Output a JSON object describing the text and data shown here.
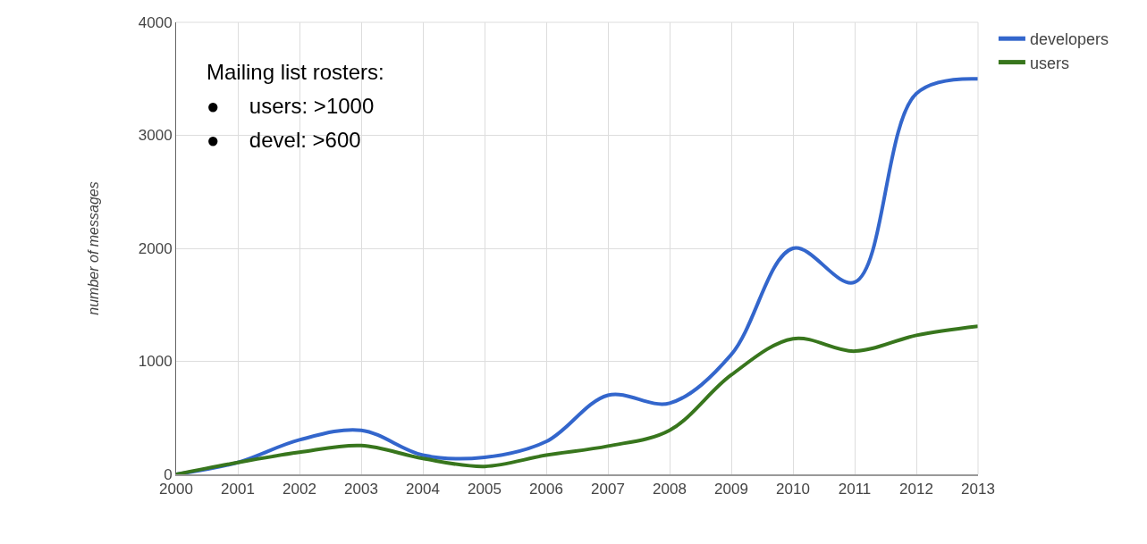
{
  "chart_data": {
    "type": "line",
    "ylabel": "number of messages",
    "x": [
      2000,
      2001,
      2002,
      2003,
      2004,
      2005,
      2006,
      2007,
      2008,
      2009,
      2010,
      2011,
      2012,
      2013
    ],
    "series": [
      {
        "name": "developers",
        "color": "#3366cc",
        "values": [
          0,
          105,
          305,
          390,
          170,
          150,
          290,
          700,
          630,
          1060,
          2000,
          1700,
          3370,
          3500
        ]
      },
      {
        "name": "users",
        "color": "#38761d",
        "values": [
          0,
          105,
          195,
          255,
          140,
          70,
          170,
          250,
          390,
          880,
          1200,
          1090,
          1230,
          1310
        ]
      }
    ],
    "xlim": [
      2000,
      2013
    ],
    "xticks": [
      2000,
      2001,
      2002,
      2003,
      2004,
      2005,
      2006,
      2007,
      2008,
      2009,
      2010,
      2011,
      2012,
      2013
    ],
    "ylim": [
      0,
      4000
    ],
    "yticks": [
      0,
      1000,
      2000,
      3000,
      4000
    ],
    "grid": true,
    "legend": "top right",
    "marker": "none",
    "line_style": "solid",
    "annotations": [
      "Mailing list rosters:",
      "●     users: >1000",
      "●     devel: >600"
    ]
  }
}
